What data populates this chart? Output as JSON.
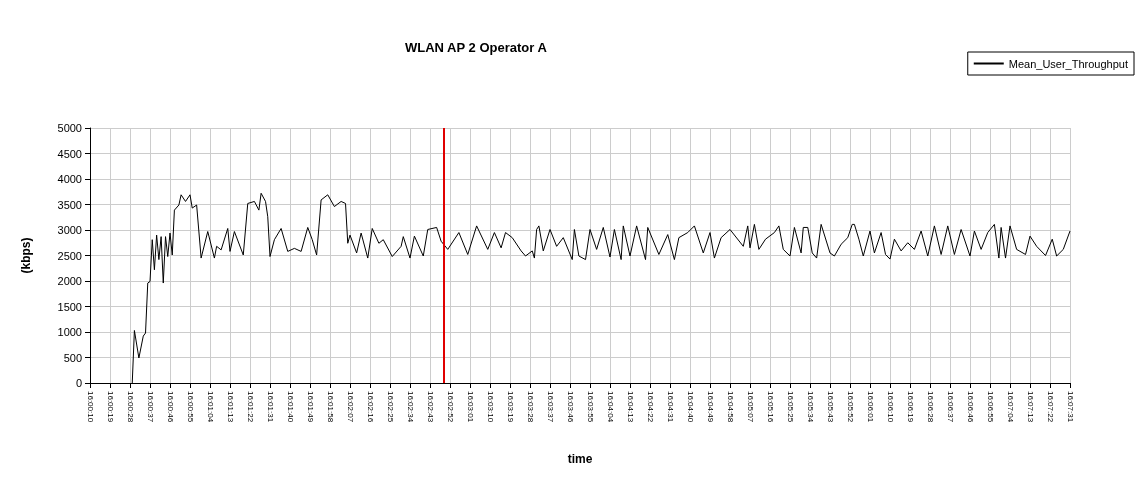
{
  "chart_data": {
    "type": "line",
    "title": "WLAN AP 2 Operator A",
    "xlabel": "time",
    "ylabel": "(kbps)",
    "x": [
      16.00806,
      16.00833,
      16.00889,
      16.00944,
      16.00972,
      16.01,
      16.01028,
      16.01056,
      16.01083,
      16.01111,
      16.01139,
      16.01167,
      16.01194,
      16.01222,
      16.0125,
      16.01278,
      16.01306,
      16.01333,
      16.01389,
      16.01417,
      16.01472,
      16.01528,
      16.01556,
      16.01611,
      16.01667,
      16.0175,
      16.01833,
      16.01861,
      16.01917,
      16.02,
      16.02028,
      16.02083,
      16.02194,
      16.0225,
      16.02333,
      16.02389,
      16.02417,
      16.02472,
      16.025,
      16.02528,
      16.02583,
      16.02667,
      16.0275,
      16.02833,
      16.02917,
      16.03,
      16.03056,
      16.03111,
      16.03167,
      16.0325,
      16.03333,
      16.03417,
      16.03472,
      16.035,
      16.03528,
      16.03611,
      16.03667,
      16.0375,
      16.03806,
      16.03889,
      16.03944,
      16.04056,
      16.04167,
      16.04194,
      16.04278,
      16.04333,
      16.04444,
      16.045,
      16.04611,
      16.04667,
      16.0475,
      16.04889,
      16.05,
      16.05111,
      16.0525,
      16.05333,
      16.05417,
      16.05472,
      16.05556,
      16.05667,
      16.05722,
      16.05806,
      16.05833,
      16.05861,
      16.05889,
      16.05944,
      16.06028,
      16.06111,
      16.06194,
      16.06306,
      16.06333,
      16.06389,
      16.06472,
      16.06528,
      16.06611,
      16.06694,
      16.06778,
      16.06833,
      16.06917,
      16.06944,
      16.07028,
      16.07111,
      16.07222,
      16.0725,
      16.07389,
      16.075,
      16.07583,
      16.07639,
      16.0775,
      16.07833,
      16.07944,
      16.08028,
      16.08083,
      16.08167,
      16.08278,
      16.08444,
      16.085,
      16.08528,
      16.08583,
      16.08639,
      16.08722,
      16.08833,
      16.08889,
      16.08944,
      16.09028,
      16.09083,
      16.09167,
      16.09194,
      16.0925,
      16.09306,
      16.09361,
      16.09417,
      16.09528,
      16.09583,
      16.09667,
      16.0975,
      16.09806,
      16.09833,
      16.09889,
      16.09944,
      16.10028,
      16.10083,
      16.10167,
      16.10222,
      16.10278,
      16.10333,
      16.10417,
      16.105,
      16.10583,
      16.10667,
      16.1075,
      16.10833,
      16.10917,
      16.11,
      16.11083,
      16.11167,
      16.11278,
      16.11333,
      16.11417,
      16.115,
      16.11583,
      16.11639,
      16.11667,
      16.11722,
      16.11778,
      16.11861,
      16.11972,
      16.12028,
      16.12111,
      16.12222,
      16.12306,
      16.12361,
      16.12444,
      16.12528
    ],
    "series": [
      {
        "name": "Mean_User_Throughput",
        "color": "#000000",
        "values": [
          0,
          1030,
          490,
          920,
          980,
          1960,
          1990,
          2810,
          2220,
          2900,
          2420,
          2870,
          1960,
          2870,
          2480,
          2940,
          2510,
          3390,
          3490,
          3690,
          3560,
          3690,
          3430,
          3490,
          2450,
          2970,
          2450,
          2680,
          2610,
          3030,
          2580,
          2970,
          2510,
          3520,
          3560,
          3390,
          3720,
          3560,
          3260,
          2480,
          2810,
          3030,
          2580,
          2640,
          2580,
          3050,
          2810,
          2510,
          3590,
          3690,
          3460,
          3560,
          3520,
          2740,
          2900,
          2550,
          2940,
          2450,
          3030,
          2740,
          2810,
          2480,
          2680,
          2870,
          2450,
          2880,
          2490,
          3010,
          3050,
          2780,
          2620,
          2950,
          2520,
          3080,
          2620,
          2950,
          2650,
          2950,
          2850,
          2590,
          2490,
          2590,
          2450,
          3010,
          3080,
          2590,
          3010,
          2680,
          2850,
          2420,
          3010,
          2490,
          2420,
          3010,
          2620,
          3050,
          2470,
          3010,
          2420,
          3080,
          2490,
          3080,
          2420,
          3050,
          2520,
          2910,
          2420,
          2850,
          2950,
          3080,
          2550,
          2950,
          2450,
          2850,
          3010,
          2680,
          3080,
          2650,
          3110,
          2620,
          2820,
          2950,
          3080,
          2620,
          2490,
          3050,
          2550,
          3050,
          3050,
          2550,
          2450,
          3110,
          2550,
          2490,
          2720,
          2850,
          3110,
          3110,
          2820,
          2490,
          2980,
          2550,
          2950,
          2520,
          2430,
          2820,
          2590,
          2750,
          2620,
          2980,
          2490,
          3080,
          2520,
          3080,
          2520,
          3010,
          2490,
          2980,
          2620,
          2950,
          3110,
          2450,
          3050,
          2450,
          3080,
          2620,
          2520,
          2880,
          2680,
          2500,
          2820,
          2490,
          2620,
          2980
        ]
      }
    ],
    "xlim": [
      16.00278,
      16.12528
    ],
    "xticks": [
      {
        "value": 16.00278,
        "label": "16:00:10"
      },
      {
        "value": 16.00528,
        "label": "16:00:19"
      },
      {
        "value": 16.00778,
        "label": "16:00:28"
      },
      {
        "value": 16.01028,
        "label": "16:00:37"
      },
      {
        "value": 16.01278,
        "label": "16:00:46"
      },
      {
        "value": 16.01528,
        "label": "16:00:55"
      },
      {
        "value": 16.01778,
        "label": "16:01:04"
      },
      {
        "value": 16.02028,
        "label": "16:01:13"
      },
      {
        "value": 16.02278,
        "label": "16:01:22"
      },
      {
        "value": 16.02528,
        "label": "16:01:31"
      },
      {
        "value": 16.02778,
        "label": "16:01:40"
      },
      {
        "value": 16.03028,
        "label": "16:01:49"
      },
      {
        "value": 16.03278,
        "label": "16:01:58"
      },
      {
        "value": 16.03528,
        "label": "16:02:07"
      },
      {
        "value": 16.03778,
        "label": "16:02:16"
      },
      {
        "value": 16.04028,
        "label": "16:02:25"
      },
      {
        "value": 16.04278,
        "label": "16:02:34"
      },
      {
        "value": 16.04528,
        "label": "16:02:43"
      },
      {
        "value": 16.04778,
        "label": "16:02:52"
      },
      {
        "value": 16.05028,
        "label": "16:03:01"
      },
      {
        "value": 16.05278,
        "label": "16:03:10"
      },
      {
        "value": 16.05528,
        "label": "16:03:19"
      },
      {
        "value": 16.05778,
        "label": "16:03:28"
      },
      {
        "value": 16.06028,
        "label": "16:03:37"
      },
      {
        "value": 16.06278,
        "label": "16:03:46"
      },
      {
        "value": 16.06528,
        "label": "16:03:55"
      },
      {
        "value": 16.06778,
        "label": "16:04:04"
      },
      {
        "value": 16.07028,
        "label": "16:04:13"
      },
      {
        "value": 16.07278,
        "label": "16:04:22"
      },
      {
        "value": 16.07528,
        "label": "16:04:31"
      },
      {
        "value": 16.07778,
        "label": "16:04:40"
      },
      {
        "value": 16.08028,
        "label": "16:04:49"
      },
      {
        "value": 16.08278,
        "label": "16:04:58"
      },
      {
        "value": 16.08528,
        "label": "16:05:07"
      },
      {
        "value": 16.08778,
        "label": "16:05:16"
      },
      {
        "value": 16.09028,
        "label": "16:05:25"
      },
      {
        "value": 16.09278,
        "label": "16:05:34"
      },
      {
        "value": 16.09528,
        "label": "16:05:43"
      },
      {
        "value": 16.09778,
        "label": "16:05:52"
      },
      {
        "value": 16.10028,
        "label": "16:06:01"
      },
      {
        "value": 16.10278,
        "label": "16:06:10"
      },
      {
        "value": 16.10528,
        "label": "16:06:19"
      },
      {
        "value": 16.10778,
        "label": "16:06:28"
      },
      {
        "value": 16.11028,
        "label": "16:06:37"
      },
      {
        "value": 16.11278,
        "label": "16:06:46"
      },
      {
        "value": 16.11528,
        "label": "16:06:55"
      },
      {
        "value": 16.11778,
        "label": "16:07:04"
      },
      {
        "value": 16.12028,
        "label": "16:07:13"
      },
      {
        "value": 16.12278,
        "label": "16:07:22"
      },
      {
        "value": 16.12528,
        "label": "16:07:31"
      }
    ],
    "ylim": [
      0,
      5000
    ],
    "yticks": [
      0,
      500,
      1000,
      1500,
      2000,
      2500,
      3000,
      3500,
      4000,
      4500,
      5000
    ],
    "ref_lines": [
      {
        "axis": "x",
        "value": 16.04694,
        "color": "#e00000"
      }
    ],
    "grid": true,
    "legend": "top right",
    "marker": "none",
    "line_style": "solid"
  }
}
